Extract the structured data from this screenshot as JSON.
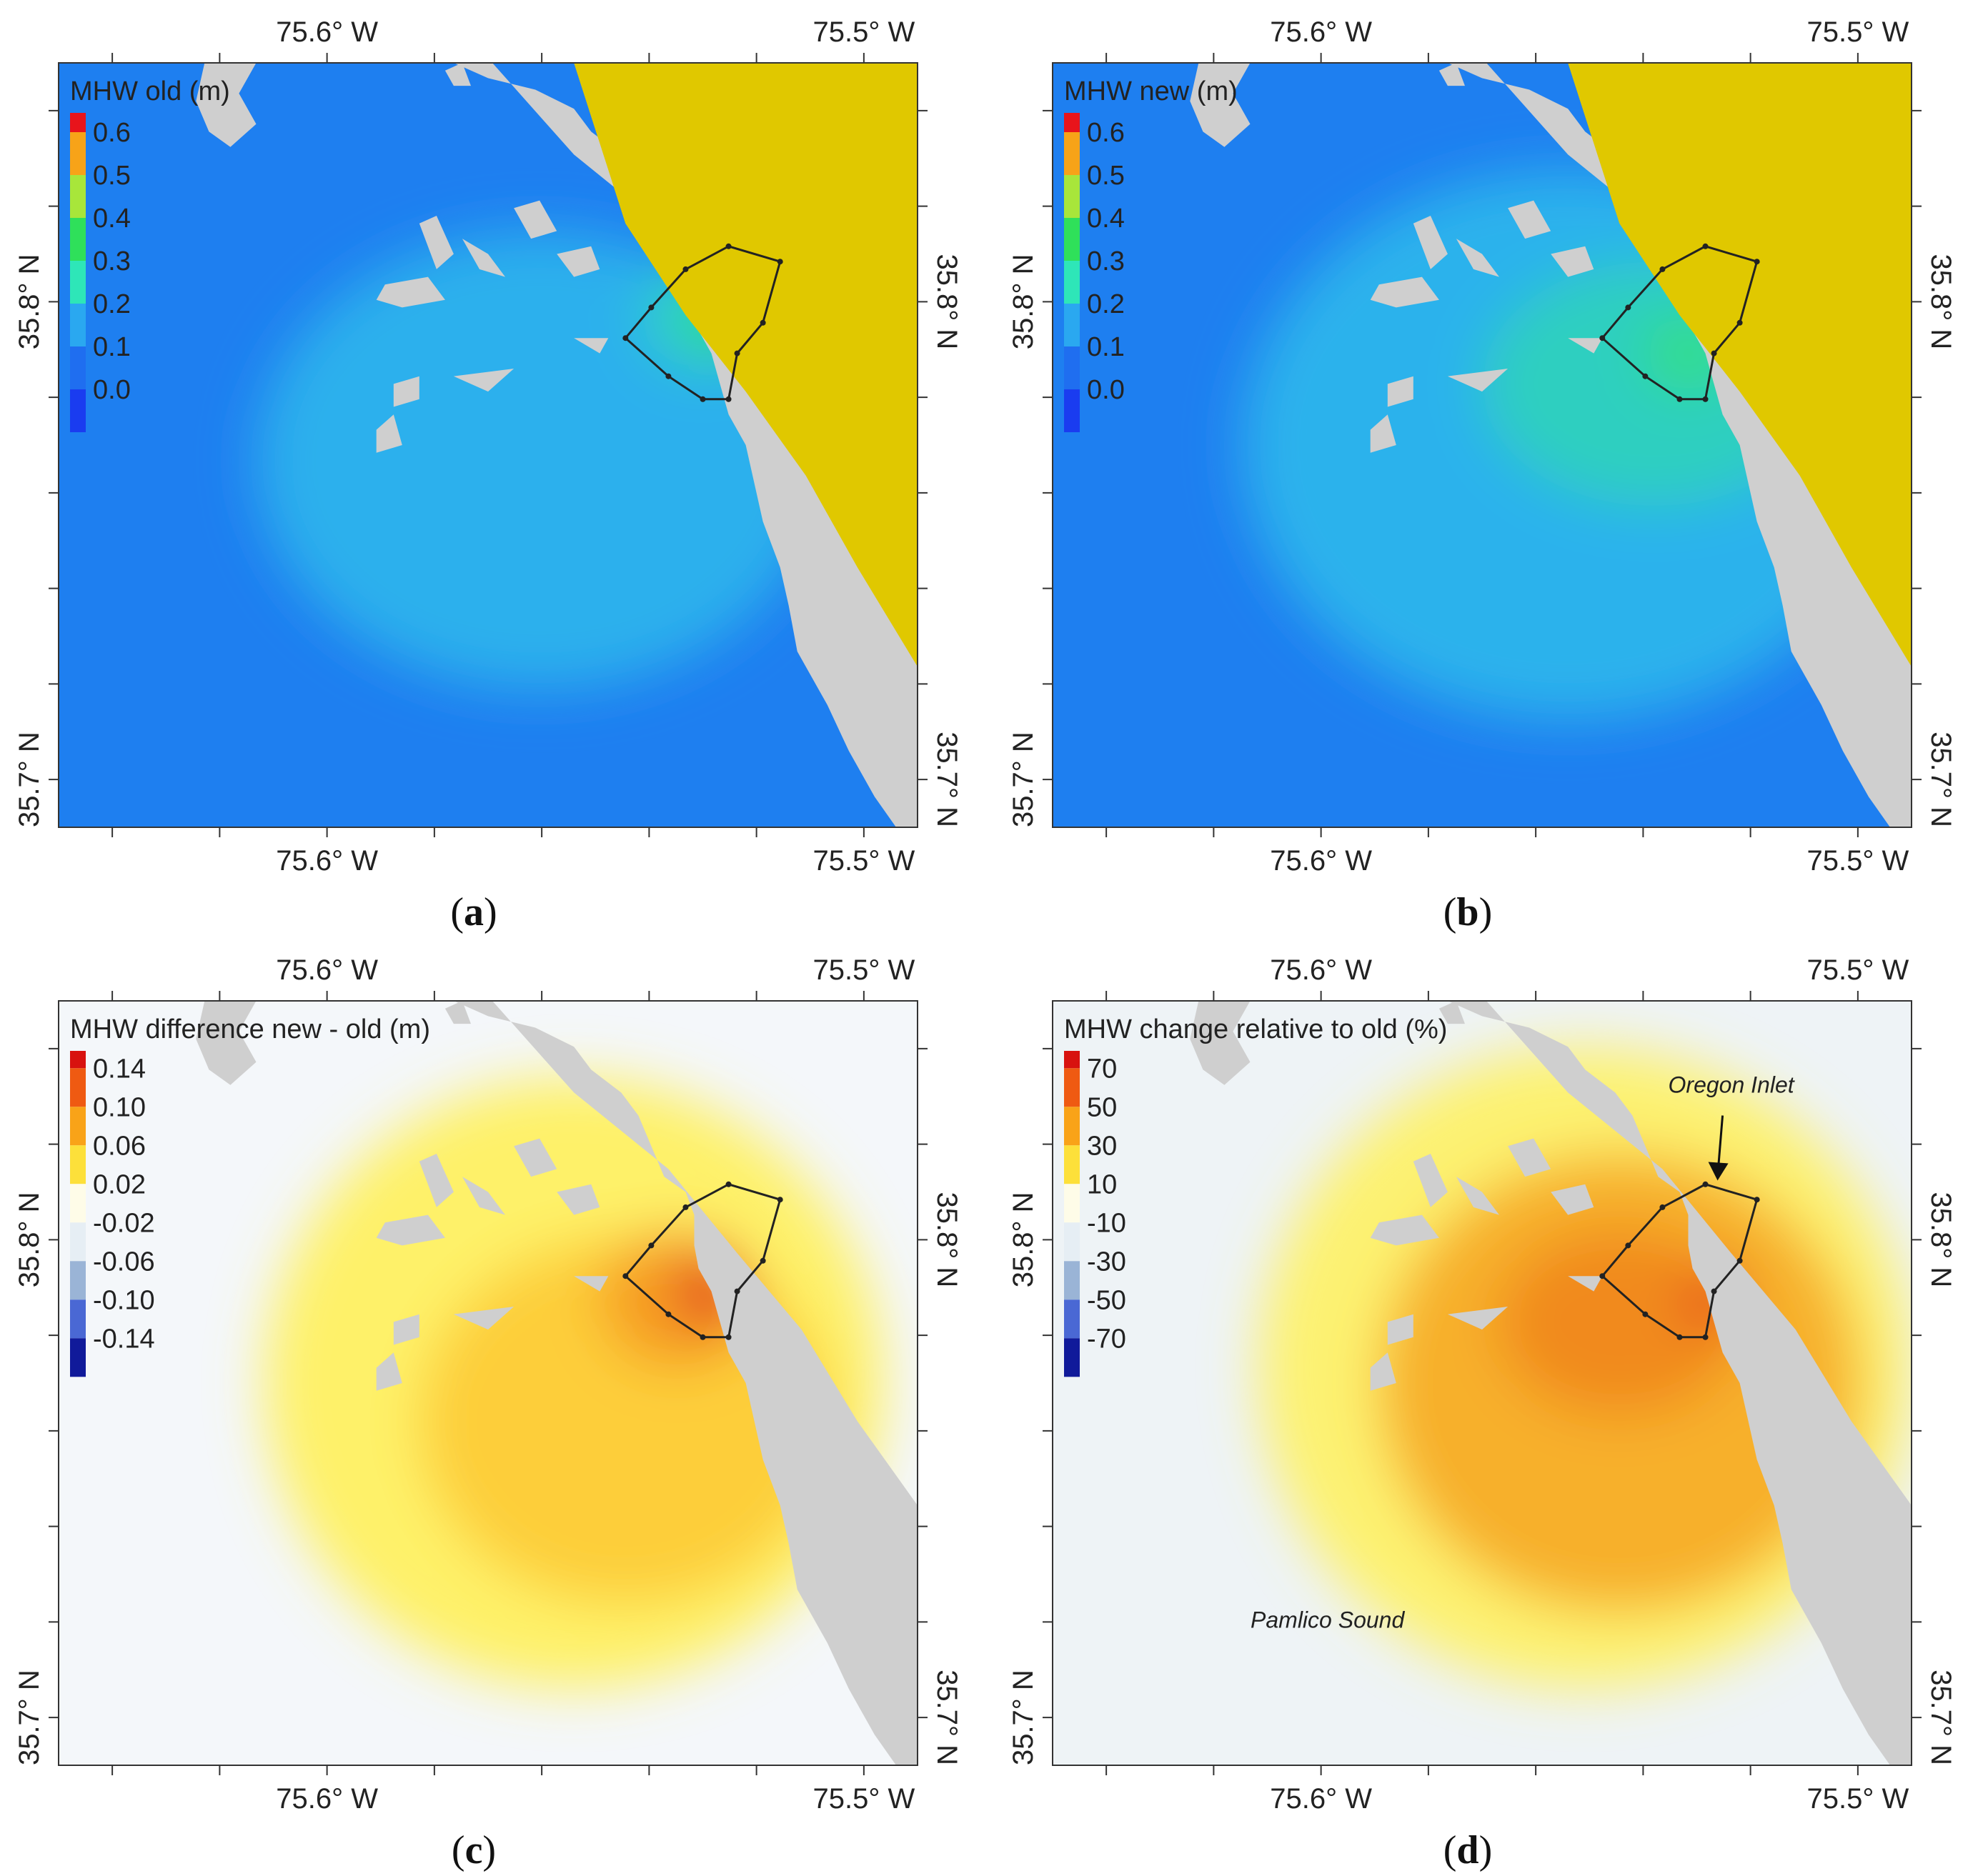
{
  "figure": {
    "panels": [
      {
        "id": "a",
        "caption_letter": "a",
        "legend_title": "MHW old (m)",
        "legend_ticks": [
          "0.6",
          "0.5",
          "0.4",
          "0.3",
          "0.2",
          "0.1",
          "0.0"
        ],
        "legend_colors": [
          "#e8141b",
          "#f7a318",
          "#a8e63a",
          "#2fe05a",
          "#2ee6b8",
          "#2aa8f0",
          "#1f6ef0",
          "#1a3cf0"
        ],
        "field": "old"
      },
      {
        "id": "b",
        "caption_letter": "b",
        "legend_title": "MHW new (m)",
        "legend_ticks": [
          "0.6",
          "0.5",
          "0.4",
          "0.3",
          "0.2",
          "0.1",
          "0.0"
        ],
        "legend_colors": [
          "#e8141b",
          "#f7a318",
          "#a8e63a",
          "#2fe05a",
          "#2ee6b8",
          "#2aa8f0",
          "#1f6ef0",
          "#1a3cf0"
        ],
        "field": "new"
      },
      {
        "id": "c",
        "caption_letter": "c",
        "legend_title": "MHW difference new - old (m)",
        "legend_ticks": [
          "0.14",
          "0.10",
          "0.06",
          "0.02",
          "-0.02",
          "-0.06",
          "-0.10",
          "-0.14"
        ],
        "legend_colors": [
          "#d8120f",
          "#ef5a12",
          "#f9a318",
          "#fde03a",
          "#fefce8",
          "#e6eef4",
          "#9ab4d6",
          "#4a68d4",
          "#101a9a"
        ],
        "field": "diff"
      },
      {
        "id": "d",
        "caption_letter": "d",
        "legend_title": "MHW change relative to old (%)",
        "legend_ticks": [
          "70",
          "50",
          "30",
          "10",
          "-10",
          "-30",
          "-50",
          "-70"
        ],
        "legend_colors": [
          "#d8120f",
          "#ef5a12",
          "#f9a318",
          "#fde03a",
          "#fefce8",
          "#e6eef4",
          "#9ab4d6",
          "#4a68d4",
          "#101a9a"
        ],
        "field": "pct",
        "annotations": [
          {
            "text": "Oregon Inlet"
          },
          {
            "text": "Pamlico Sound"
          }
        ]
      }
    ],
    "axes": {
      "lon_ticks": [
        -75.6,
        -75.5
      ],
      "lon_labels": [
        "75.6° W",
        "75.5° W"
      ],
      "lat_ticks": [
        35.8,
        35.7
      ],
      "lat_labels": [
        "35.8° N",
        "35.7° N"
      ],
      "lon_range": [
        -75.65,
        -75.49
      ],
      "lat_range": [
        35.69,
        35.85
      ]
    },
    "colors": {
      "land": "#cfcfcf",
      "ocean_land_yellow": "#e0c800",
      "outline": "#222222"
    }
  }
}
